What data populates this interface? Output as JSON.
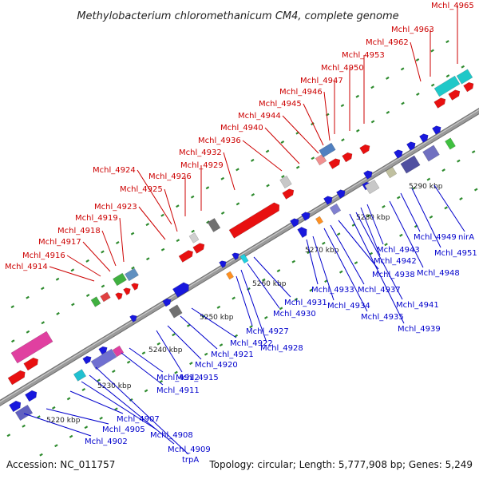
{
  "title": "Methylobacterium chloromethanicum CM4, complete genome",
  "footer": {
    "accession": "Accession: NC_011757",
    "topology": "Topology: circular; Length: 5,777,908 bp; Genes: 5,249"
  },
  "colors": {
    "red_label": "#cc0000",
    "blue_label": "#0000cc",
    "backbone": "#9a9a9a",
    "dots": "#2e8b2e"
  },
  "scale_ticks": [
    "5220 kbp",
    "5230 kbp",
    "5240 kbp",
    "5250 kbp",
    "5260 kbp",
    "5270 kbp",
    "5280 kbp",
    "5290 kbp"
  ],
  "forward_genes": [
    "Mchl_4914",
    "Mchl_4916",
    "Mchl_4917",
    "Mchl_4918",
    "Mchl_4919",
    "Mchl_4923",
    "Mchl_4925",
    "Mchl_4924",
    "Mchl_4926",
    "Mchl_4929",
    "Mchl_4932",
    "Mchl_4936",
    "Mchl_4940",
    "Mchl_4944",
    "Mchl_4945",
    "Mchl_4946",
    "Mchl_4947",
    "Mchl_4950",
    "Mchl_4953",
    "Mchl_4962",
    "Mchl_4963",
    "Mchl_4965"
  ],
  "reverse_genes": [
    "Mchl_4902",
    "Mchl_4905",
    "Mchl_4907",
    "Mchl_4908",
    "Mchl_4909",
    "trpA",
    "Mchl_4911",
    "Mchl_4912",
    "Mchl_4915",
    "Mchl_4920",
    "Mchl_4921",
    "Mchl_4922",
    "Mchl_4927",
    "Mchl_4928",
    "Mchl_4930",
    "Mchl_4931",
    "Mchl_4933",
    "Mchl_4934",
    "Mchl_4935",
    "Mchl_4937",
    "Mchl_4938",
    "Mchl_4939",
    "Mchl_4941",
    "Mchl_4942",
    "Mchl_4943",
    "Mchl_4948",
    "Mchl_4949",
    "Mchl_4951",
    "nirA"
  ]
}
